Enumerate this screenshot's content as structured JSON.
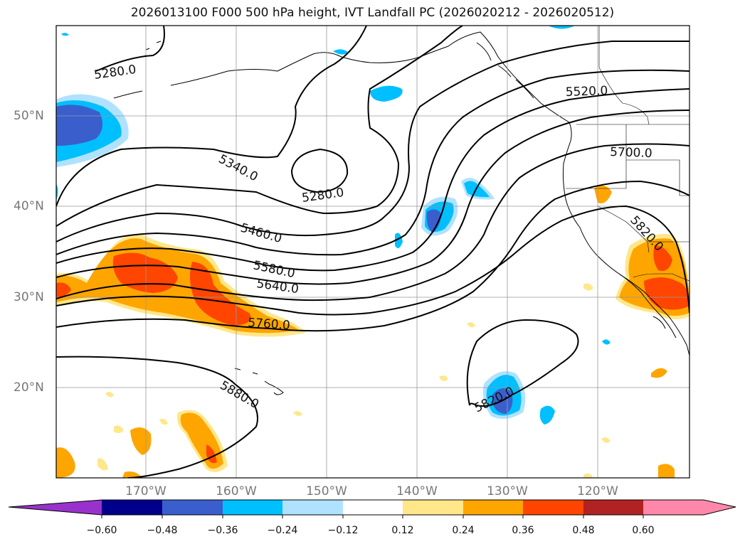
{
  "title": "2026013100 F000 500 hPa height, IVT Landfall PC (2026020212 - 2026020512)",
  "map": {
    "lat_labels": [
      "50°N",
      "40°N",
      "30°N",
      "20°N"
    ],
    "lon_labels": [
      "170°W",
      "160°W",
      "150°W",
      "140°W",
      "130°W",
      "120°W"
    ],
    "contour_labels": [
      "5280.0",
      "5280.0",
      "5340.0",
      "5460.0",
      "5580.0",
      "5640.0",
      "5760.0",
      "5880.0",
      "5520.0",
      "5700.0",
      "5820.0",
      "5820.0"
    ]
  },
  "colorbar": {
    "ticks": [
      "−0.60",
      "−0.48",
      "−0.36",
      "−0.24",
      "−0.12",
      "0.12",
      "0.24",
      "0.36",
      "0.48",
      "0.60"
    ],
    "colors": [
      "#9932CC",
      "#00008B",
      "#3A5FCD",
      "#00BFFF",
      "#B0E2FF",
      "#FFFFFF",
      "#FFE78A",
      "#FFA500",
      "#FF4500",
      "#B22222",
      "#FF88AA"
    ]
  }
}
